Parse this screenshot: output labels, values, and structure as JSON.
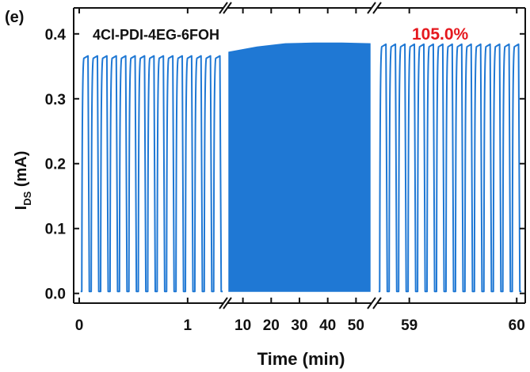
{
  "chart_data": {
    "type": "line",
    "panel_label": "(e)",
    "annotation": "4Cl-PDI-4EG-6FOH",
    "retention_label": "105.0%",
    "xlabel": "Time (min)",
    "ylabel_main": "I",
    "ylabel_sub": "DS",
    "ylabel_unit": " (mA)",
    "ylim": [
      -0.015,
      0.44
    ],
    "yticks": [
      "0.0",
      "0.1",
      "0.2",
      "0.3",
      "0.4"
    ],
    "segments": [
      {
        "name": "first",
        "xlim": [
          0,
          1.33
        ],
        "ticks": [
          0,
          1
        ],
        "tick_labels": [
          "0",
          "1"
        ],
        "pulses": 15,
        "on_level": 0.366,
        "off_level": 0.003
      },
      {
        "name": "middle",
        "xlim": [
          4.5,
          55.5
        ],
        "ticks": [
          10,
          20,
          30,
          40,
          50
        ],
        "tick_labels": [
          "10",
          "20",
          "30",
          "40",
          "50"
        ],
        "envelope": {
          "x": [
            5,
            15,
            25,
            35,
            45,
            55
          ],
          "y": [
            0.372,
            0.38,
            0.385,
            0.386,
            0.386,
            0.385
          ]
        },
        "off_level": 0.003
      },
      {
        "name": "last",
        "xlim": [
          58.7,
          60.05
        ],
        "ticks": [
          59,
          60
        ],
        "tick_labels": [
          "59",
          "60"
        ],
        "pulses": 15,
        "on_level": 0.384,
        "off_level": 0.003
      }
    ],
    "color": "#1f78d4",
    "retention_color": "#e5181e"
  }
}
